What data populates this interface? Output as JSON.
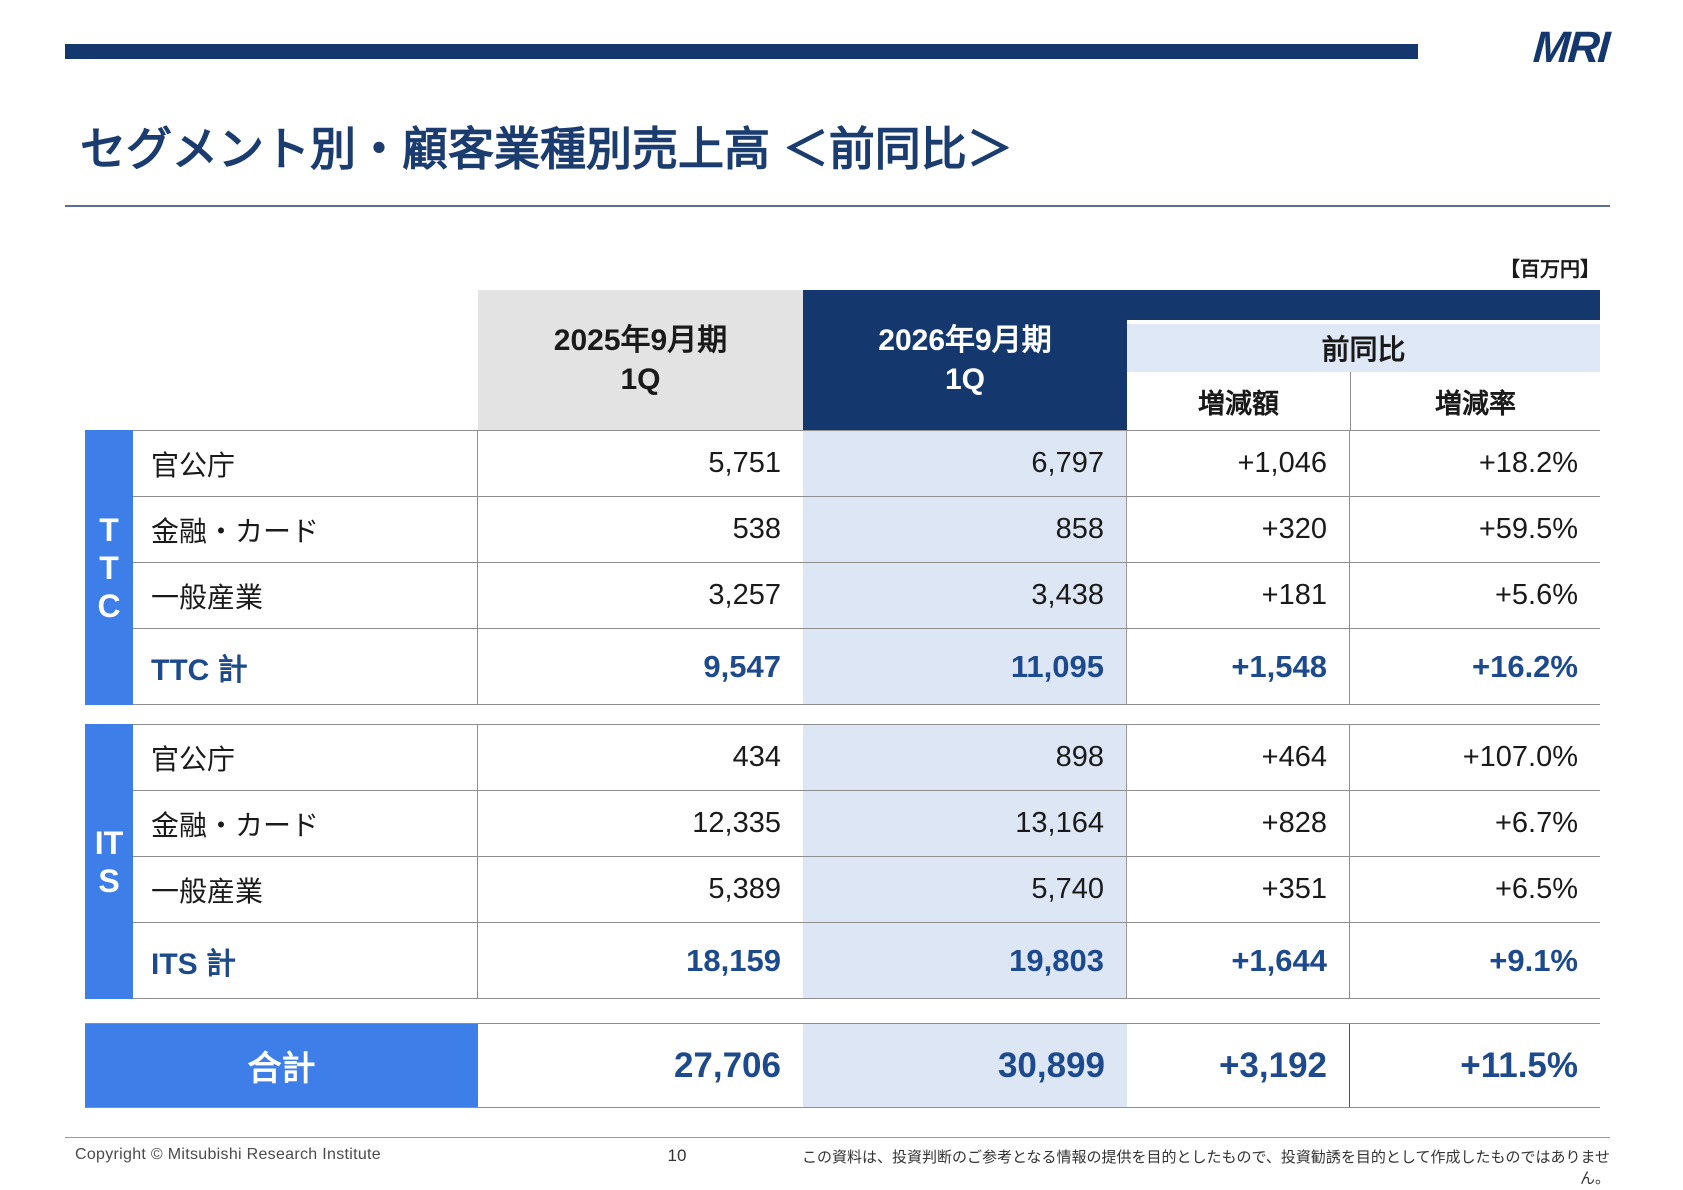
{
  "header": {
    "logo": "MRI",
    "title": "セグメント別・顧客業種別売上高 ＜前同比＞",
    "unit_label": "【百万円】"
  },
  "table": {
    "columns": {
      "prev_line1": "2025年9月期",
      "prev_line2": "1Q",
      "curr_line1": "2026年9月期",
      "curr_line2": "1Q",
      "yoy": "前同比",
      "yoy_amount": "増減額",
      "yoy_rate": "増減率"
    },
    "groups": [
      {
        "name": "TTC",
        "rows": [
          {
            "label": "官公庁",
            "prev": "5,751",
            "curr": "6,797",
            "diff": "+1,046",
            "rate": "+18.2%"
          },
          {
            "label": "金融・カード",
            "prev": "538",
            "curr": "858",
            "diff": "+320",
            "rate": "+59.5%"
          },
          {
            "label": "一般産業",
            "prev": "3,257",
            "curr": "3,438",
            "diff": "+181",
            "rate": "+5.6%"
          }
        ],
        "total": {
          "label": "TTC 計",
          "prev": "9,547",
          "curr": "11,095",
          "diff": "+1,548",
          "rate": "+16.2%"
        }
      },
      {
        "name": "ITS",
        "rows": [
          {
            "label": "官公庁",
            "prev": "434",
            "curr": "898",
            "diff": "+464",
            "rate": "+107.0%"
          },
          {
            "label": "金融・カード",
            "prev": "12,335",
            "curr": "13,164",
            "diff": "+828",
            "rate": "+6.7%"
          },
          {
            "label": "一般産業",
            "prev": "5,389",
            "curr": "5,740",
            "diff": "+351",
            "rate": "+6.5%"
          }
        ],
        "total": {
          "label": "ITS 計",
          "prev": "18,159",
          "curr": "19,803",
          "diff": "+1,644",
          "rate": "+9.1%"
        }
      }
    ],
    "grand_total": {
      "label": "合計",
      "prev": "27,706",
      "curr": "30,899",
      "diff": "+3,192",
      "rate": "+11.5%"
    }
  },
  "footer": {
    "copyright": "Copyright © Mitsubishi Research Institute",
    "page_number": "10",
    "disclaimer": "この資料は、投資判断のご参考となる情報の提供を目的としたもので、投資勧誘を目的として作成したものではありません。"
  },
  "colors": {
    "navy": "#14386e",
    "accent_blue": "#3e7ee9",
    "light_blue": "#dce6f5",
    "gray_header": "#e3e3e3",
    "total_text": "#1d4a8c"
  }
}
